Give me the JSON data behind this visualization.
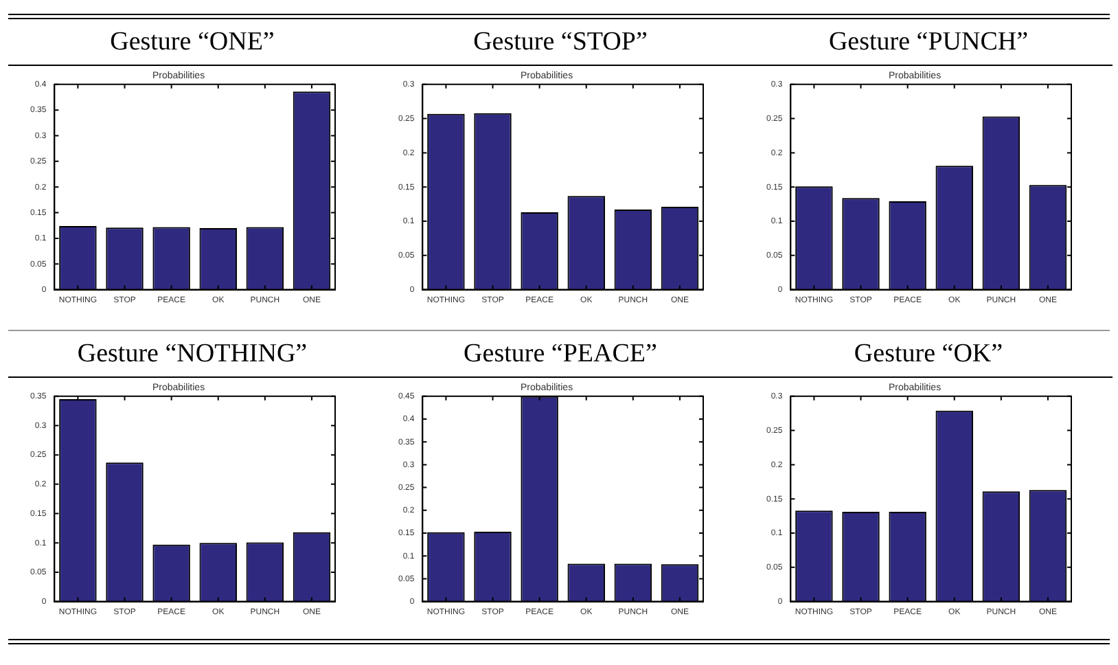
{
  "chart_data": [
    {
      "type": "bar",
      "title": "Gesture “ONE”",
      "subtitle": "Probabilities",
      "categories": [
        "NOTHING",
        "STOP",
        "PEACE",
        "OK",
        "PUNCH",
        "ONE"
      ],
      "values": [
        0.124,
        0.121,
        0.122,
        0.12,
        0.122,
        0.386
      ],
      "color": "#2f2a80",
      "ylim": [
        0,
        0.4
      ],
      "yticks": [
        0,
        0.05,
        0.1,
        0.15,
        0.2,
        0.25,
        0.3,
        0.35,
        0.4
      ],
      "grid": false,
      "legend": false
    },
    {
      "type": "bar",
      "title": "Gesture “STOP”",
      "subtitle": "Probabilities",
      "categories": [
        "NOTHING",
        "STOP",
        "PEACE",
        "OK",
        "PUNCH",
        "ONE"
      ],
      "values": [
        0.257,
        0.258,
        0.113,
        0.137,
        0.117,
        0.121
      ],
      "color": "#2f2a80",
      "ylim": [
        0,
        0.3
      ],
      "yticks": [
        0,
        0.05,
        0.1,
        0.15,
        0.2,
        0.25,
        0.3
      ],
      "grid": false,
      "legend": false
    },
    {
      "type": "bar",
      "title": "Gesture “PUNCH”",
      "subtitle": "Probabilities",
      "categories": [
        "NOTHING",
        "STOP",
        "PEACE",
        "OK",
        "PUNCH",
        "ONE"
      ],
      "values": [
        0.151,
        0.134,
        0.129,
        0.181,
        0.253,
        0.153
      ],
      "color": "#2f2a80",
      "ylim": [
        0,
        0.3
      ],
      "yticks": [
        0,
        0.05,
        0.1,
        0.15,
        0.2,
        0.25,
        0.3
      ],
      "grid": false,
      "legend": false
    },
    {
      "type": "bar",
      "title": "Gesture “NOTHING”",
      "subtitle": "Probabilities",
      "categories": [
        "NOTHING",
        "STOP",
        "PEACE",
        "OK",
        "PUNCH",
        "ONE"
      ],
      "values": [
        0.345,
        0.237,
        0.097,
        0.1,
        0.101,
        0.118
      ],
      "color": "#2f2a80",
      "ylim": [
        0,
        0.35
      ],
      "yticks": [
        0,
        0.05,
        0.1,
        0.15,
        0.2,
        0.25,
        0.3,
        0.35
      ],
      "grid": false,
      "legend": false
    },
    {
      "type": "bar",
      "title": "Gesture “PEACE”",
      "subtitle": "Probabilities",
      "categories": [
        "NOTHING",
        "STOP",
        "PEACE",
        "OK",
        "PUNCH",
        "ONE"
      ],
      "values": [
        0.152,
        0.153,
        0.45,
        0.083,
        0.083,
        0.082
      ],
      "color": "#2f2a80",
      "ylim": [
        0,
        0.45
      ],
      "yticks": [
        0,
        0.05,
        0.1,
        0.15,
        0.2,
        0.25,
        0.3,
        0.35,
        0.4,
        0.45
      ],
      "grid": false,
      "legend": false
    },
    {
      "type": "bar",
      "title": "Gesture “OK”",
      "subtitle": "Probabilities",
      "categories": [
        "NOTHING",
        "STOP",
        "PEACE",
        "OK",
        "PUNCH",
        "ONE"
      ],
      "values": [
        0.133,
        0.131,
        0.131,
        0.279,
        0.161,
        0.163
      ],
      "color": "#2f2a80",
      "ylim": [
        0,
        0.3
      ],
      "yticks": [
        0,
        0.05,
        0.1,
        0.15,
        0.2,
        0.25,
        0.3
      ],
      "grid": false,
      "legend": false
    }
  ]
}
